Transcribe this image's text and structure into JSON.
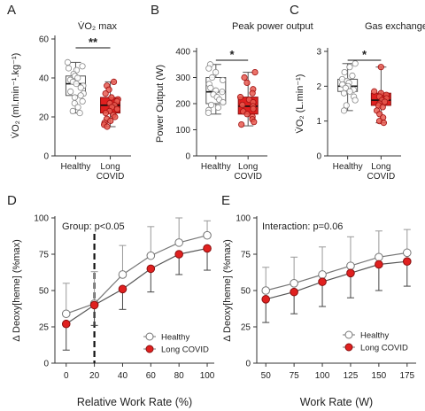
{
  "chart_data": [
    {
      "panel": "A",
      "type": "box",
      "title": "V̇O₂ max",
      "ylabel": "V̇O₂ (ml.min⁻¹.kg⁻¹)",
      "ylim": [
        0,
        60
      ],
      "yticks": [
        "0",
        "20",
        "40",
        "60"
      ],
      "categories": [
        "Healthy",
        "Long COVID"
      ],
      "significance": "**",
      "series": [
        {
          "name": "Healthy",
          "color": "#ffffff",
          "q1": 31,
          "median": 37,
          "q3": 41,
          "whisker_low": 22,
          "whisker_high": 48,
          "points": [
            48,
            46,
            45,
            44,
            42,
            41,
            40,
            39,
            38,
            37,
            36,
            35,
            33,
            32,
            31,
            30,
            28,
            27,
            25,
            23,
            22
          ]
        },
        {
          "name": "Long COVID",
          "color": "#e0201f",
          "q1": 22,
          "median": 26,
          "q3": 30,
          "whisker_low": 15,
          "whisker_high": 38,
          "points": [
            38,
            36,
            34,
            32,
            30,
            29,
            28,
            27,
            26,
            25,
            24,
            23,
            22,
            21,
            20,
            19,
            18,
            17,
            16,
            15
          ]
        }
      ]
    },
    {
      "panel": "B",
      "type": "box",
      "title": "Peak power output",
      "ylabel": "Power Output (W)",
      "ylim": [
        0,
        400
      ],
      "yticks": [
        "0",
        "100",
        "200",
        "300",
        "400"
      ],
      "categories": [
        "Healthy",
        "Long COVID"
      ],
      "significance": "*",
      "series": [
        {
          "name": "Healthy",
          "color": "#ffffff",
          "q1": 200,
          "median": 245,
          "q3": 300,
          "whisker_low": 160,
          "whisker_high": 350,
          "points": [
            350,
            335,
            320,
            300,
            290,
            275,
            260,
            250,
            245,
            235,
            225,
            215,
            205,
            195,
            185,
            175,
            165
          ]
        },
        {
          "name": "Long COVID",
          "color": "#e0201f",
          "q1": 160,
          "median": 190,
          "q3": 225,
          "whisker_low": 115,
          "whisker_high": 320,
          "points": [
            320,
            300,
            280,
            255,
            240,
            225,
            215,
            205,
            195,
            190,
            180,
            170,
            160,
            150,
            140,
            130,
            120
          ]
        }
      ]
    },
    {
      "panel": "C",
      "type": "box",
      "title": "Gas exchange threshold",
      "ylabel": "V̇O₂ (L.min⁻¹)",
      "ylim": [
        0,
        3
      ],
      "yticks": [
        "0",
        "1",
        "2",
        "3"
      ],
      "categories": [
        "Healthy",
        "Long COVID"
      ],
      "significance": "*",
      "series": [
        {
          "name": "Healthy",
          "color": "#ffffff",
          "q1": 1.85,
          "median": 2.0,
          "q3": 2.2,
          "whisker_low": 1.3,
          "whisker_high": 2.65,
          "points": [
            2.65,
            2.55,
            2.4,
            2.3,
            2.2,
            2.15,
            2.1,
            2.05,
            2.0,
            1.95,
            1.9,
            1.85,
            1.8,
            1.7,
            1.6,
            1.45,
            1.3
          ]
        },
        {
          "name": "Long COVID",
          "color": "#e0201f",
          "q1": 1.45,
          "median": 1.6,
          "q3": 1.8,
          "whisker_low": 0.95,
          "whisker_high": 2.55,
          "points": [
            2.55,
            1.85,
            1.8,
            1.75,
            1.7,
            1.65,
            1.6,
            1.55,
            1.5,
            1.45,
            1.4,
            1.3,
            1.2,
            1.1,
            1.0,
            0.95
          ]
        }
      ]
    },
    {
      "panel": "D",
      "type": "line",
      "annotation": "Group: p<0.05",
      "xlabel": "Relative Work Rate (%)",
      "ylabel": "Δ Deoxy[heme] (%max)",
      "xlim": [
        -8,
        105
      ],
      "ylim": [
        0,
        100
      ],
      "x": [
        0,
        20,
        40,
        60,
        80,
        100
      ],
      "xticks": [
        "0",
        "20",
        "40",
        "60",
        "80",
        "100"
      ],
      "yticks": [
        "0",
        "25",
        "50",
        "75",
        "100"
      ],
      "vline_x": 20,
      "legend": "bottom-right",
      "series": [
        {
          "name": "Healthy",
          "color": "#ffffff",
          "values": [
            34,
            41,
            61,
            74,
            83,
            88
          ],
          "err_up": [
            21,
            22,
            20,
            20,
            17,
            10
          ]
        },
        {
          "name": "Long COVID",
          "color": "#e0201f",
          "values": [
            27,
            40,
            51,
            65,
            75,
            79
          ],
          "err_dn": [
            18,
            14,
            14,
            16,
            14,
            15
          ]
        }
      ]
    },
    {
      "panel": "E",
      "type": "line",
      "annotation": "Interaction: p=0.06",
      "xlabel": "Work Rate (W)",
      "ylabel": "Δ Deoxy[heme] (%max)",
      "xlim": [
        42,
        183
      ],
      "ylim": [
        0,
        100
      ],
      "x": [
        50,
        75,
        100,
        125,
        150,
        175
      ],
      "xticks": [
        "50",
        "75",
        "100",
        "125",
        "150",
        "175"
      ],
      "yticks": [
        "0",
        "25",
        "50",
        "75",
        "100"
      ],
      "legend": "bottom-right",
      "series": [
        {
          "name": "Healthy",
          "color": "#ffffff",
          "values": [
            50,
            55,
            61,
            67,
            73,
            76
          ],
          "err_up": [
            16,
            18,
            19,
            20,
            18,
            16
          ]
        },
        {
          "name": "Long COVID",
          "color": "#e0201f",
          "values": [
            44,
            49,
            56,
            62,
            68,
            70
          ],
          "err_dn": [
            16,
            15,
            17,
            17,
            18,
            17
          ]
        }
      ]
    }
  ]
}
